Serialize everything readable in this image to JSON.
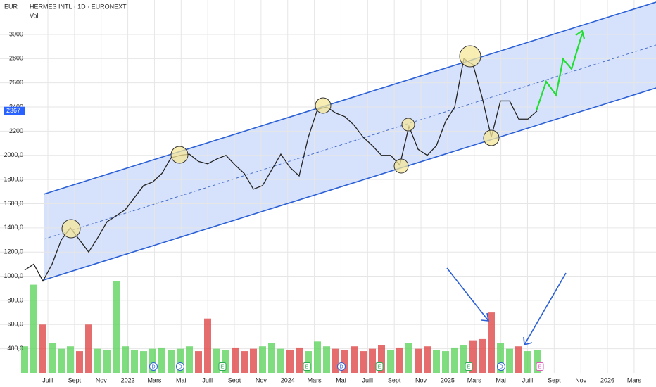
{
  "chart_data": {
    "type": "line",
    "currency": "EUR",
    "title": "HERMES INTL · 1D · EURONEXT",
    "volume_label": "Vol",
    "last_price": 2367,
    "values": [
      1050,
      1100,
      960,
      1100,
      1300,
      1400,
      1300,
      1200,
      1320,
      1450,
      1500,
      1550,
      1650,
      1750,
      1780,
      1850,
      1980,
      2000,
      2010,
      1950,
      1930,
      1970,
      2000,
      1920,
      1850,
      1720,
      1750,
      1880,
      2010,
      1900,
      1830,
      2150,
      2380,
      2400,
      2350,
      2320,
      2250,
      2150,
      2080,
      2000,
      2000,
      1920,
      2240,
      2050,
      2000,
      2080,
      2280,
      2400,
      2800,
      2750,
      2480,
      2150,
      2450,
      2450,
      2300,
      2300,
      2367
    ],
    "color": "#222222",
    "volume": {
      "values": [
        420,
        930,
        600,
        450,
        400,
        420,
        380,
        600,
        400,
        390,
        960,
        420,
        390,
        380,
        400,
        410,
        390,
        400,
        420,
        380,
        650,
        400,
        390,
        410,
        380,
        400,
        420,
        450,
        400,
        390,
        410,
        380,
        460,
        420,
        400,
        390,
        420,
        380,
        400,
        430,
        390,
        410,
        450,
        400,
        420,
        390,
        380,
        410,
        430,
        470,
        480,
        700,
        450,
        400,
        420,
        380,
        390
      ],
      "up_color": "#5fd35f",
      "down_color": "#e04848"
    },
    "ylim": [
      200,
      3285
    ],
    "yticks": [
      {
        "value": 400,
        "label": "400,0"
      },
      {
        "value": 600,
        "label": "600,0"
      },
      {
        "value": 800,
        "label": "800,0"
      },
      {
        "value": 1000,
        "label": "1000,0"
      },
      {
        "value": 1200,
        "label": "1200,0"
      },
      {
        "value": 1400,
        "label": "1400,0"
      },
      {
        "value": 1600,
        "label": "1600,0"
      },
      {
        "value": 1800,
        "label": "1800,0"
      },
      {
        "value": 2000,
        "label": "2000,0"
      },
      2200,
      2400,
      2600,
      2800,
      3000
    ],
    "x_labels": [
      "Juill",
      "Sept",
      "Nov",
      "2023",
      "Mars",
      "Mai",
      "Juill",
      "Sept",
      "Nov",
      "2024",
      "Mars",
      "Mai",
      "Juill",
      "Sept",
      "Nov",
      "2025",
      "Mars",
      "Mai",
      "Juill",
      "Sept",
      "Nov",
      "2026",
      "Mars"
    ],
    "events": [
      "D",
      "D",
      "E",
      "E",
      "D",
      "E",
      "E",
      "D",
      "E"
    ],
    "grid": true
  }
}
